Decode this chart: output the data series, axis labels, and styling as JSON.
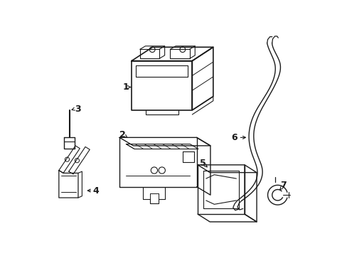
{
  "bg_color": "#ffffff",
  "line_color": "#1a1a1a",
  "line_width": 1.0,
  "fig_width": 4.89,
  "fig_height": 3.6,
  "dpi": 100
}
